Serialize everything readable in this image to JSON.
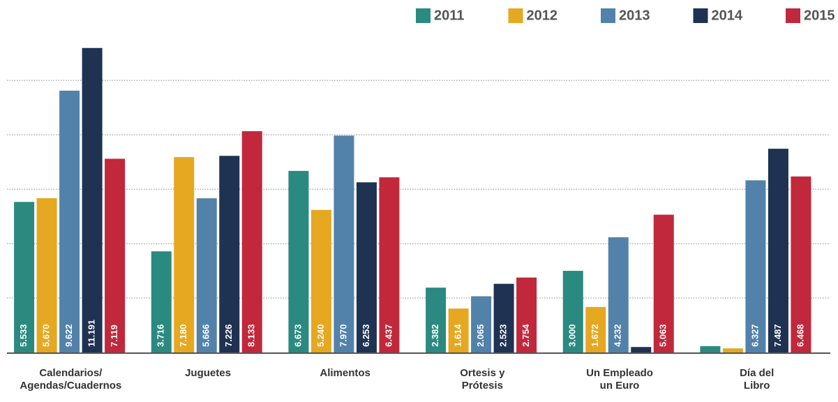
{
  "chart_data": {
    "type": "bar",
    "categories": [
      "Calendarios/\nAgendas/Cuadernos",
      "Juguetes",
      "Alimentos",
      "Ortesis y\nPrótesis",
      "Un Empleado\nun Euro",
      "Día del\nLibro"
    ],
    "series": [
      {
        "name": "2011",
        "color": "#2b8a80",
        "values": [
          5533,
          3716,
          6673,
          2382,
          3000,
          230
        ],
        "value_labels": [
          "5.533",
          "3.716",
          "6.673",
          "2.382",
          "3.000",
          null
        ]
      },
      {
        "name": "2012",
        "color": "#e6a821",
        "values": [
          5670,
          7180,
          5240,
          1614,
          1672,
          150
        ],
        "value_labels": [
          "5.670",
          "7.180",
          "5.240",
          "1.614",
          "1.672",
          null
        ]
      },
      {
        "name": "2013",
        "color": "#5282aa",
        "values": [
          9622,
          5666,
          7970,
          2065,
          4232,
          6327
        ],
        "value_labels": [
          "9.622",
          "5.666",
          "7.970",
          "2.065",
          "4.232",
          "6.327"
        ]
      },
      {
        "name": "2014",
        "color": "#1f3252",
        "values": [
          11191,
          7226,
          6253,
          2523,
          200,
          7487
        ],
        "value_labels": [
          "11.191",
          "7.226",
          "6.253",
          "2.523",
          null,
          "7.487"
        ]
      },
      {
        "name": "2015",
        "color": "#c1283b",
        "values": [
          7119,
          8133,
          6437,
          2754,
          5063,
          6468
        ],
        "value_labels": [
          "7.119",
          "8.133",
          "6.437",
          "2.754",
          "5.063",
          "6.468"
        ]
      }
    ],
    "ylim": [
      0,
      11800
    ],
    "yticks": [
      2000,
      4000,
      6000,
      8000,
      10000
    ],
    "grid": true,
    "legend": "top-right"
  }
}
